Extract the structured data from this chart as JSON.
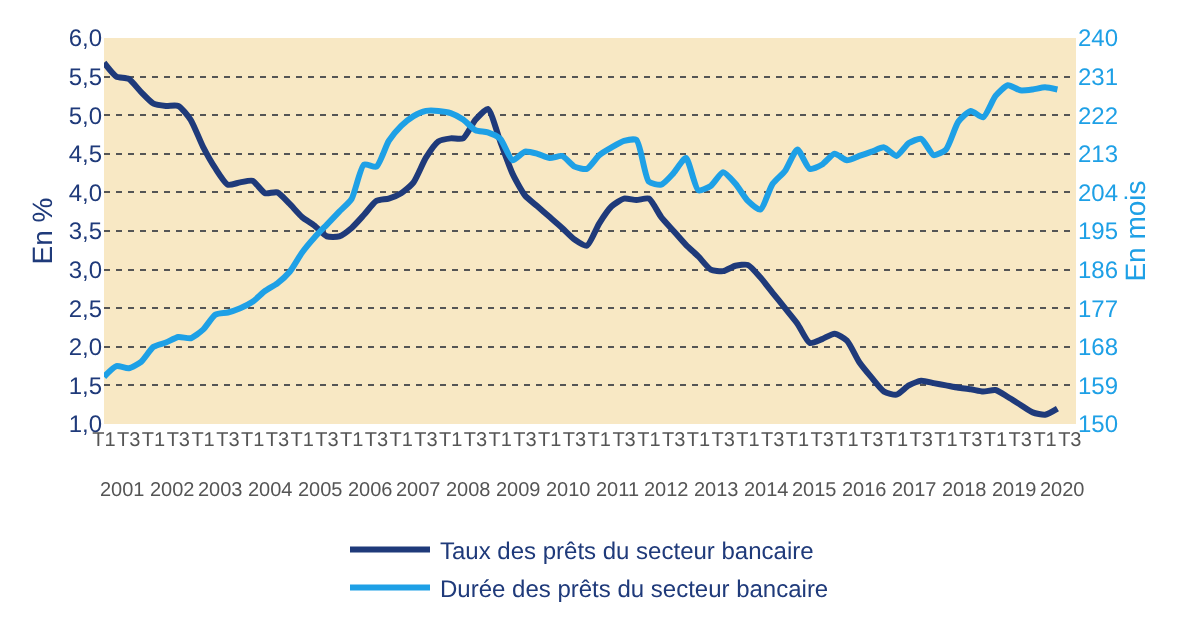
{
  "chart_data": {
    "type": "line",
    "categories": [
      "T1",
      null,
      "T3",
      null,
      "T1",
      null,
      "T3",
      null,
      "T1",
      null,
      "T3",
      null,
      "T1",
      null,
      "T3",
      null,
      "T1",
      null,
      "T3",
      null,
      "T1",
      null,
      "T3",
      null,
      "T1",
      null,
      "T3",
      null,
      "T1",
      null,
      "T3",
      null,
      "T1",
      null,
      "T3",
      null,
      "T1",
      null,
      "T3",
      null,
      "T1",
      null,
      "T3",
      null,
      "T1",
      null,
      "T3",
      null,
      "T1",
      null,
      "T3",
      null,
      "T1",
      null,
      "T3",
      null,
      "T1",
      null,
      "T3",
      null,
      "T1",
      null,
      "T3",
      null,
      "T1",
      null,
      "T3",
      null,
      "T1",
      null,
      "T3",
      null,
      "T1",
      null,
      "T3",
      null,
      "T1",
      null,
      "T3"
    ],
    "annotations": [
      "2001",
      "2002",
      "2003",
      "2004",
      "2005",
      "2006",
      "2007",
      "2008",
      "2009",
      "2010",
      "2011",
      "2012",
      "2013",
      "2014",
      "2015",
      "2016",
      "2017",
      "2018",
      "2019",
      "2020"
    ],
    "ylabel": "En %",
    "y2label": "En mois",
    "series": [
      {
        "name": "Taux des prêts du secteur bancaire",
        "color": "#1f3a7a",
        "values": [
          5.68,
          5.5,
          5.47,
          5.3,
          5.15,
          5.12,
          5.12,
          4.94,
          4.59,
          4.31,
          4.1,
          4.13,
          4.15,
          3.99,
          4.0,
          3.85,
          3.68,
          3.57,
          3.43,
          3.43,
          3.54,
          3.71,
          3.89,
          3.92,
          3.99,
          4.13,
          4.45,
          4.66,
          4.7,
          4.7,
          4.94,
          5.08,
          4.66,
          4.24,
          3.96,
          3.82,
          3.68,
          3.54,
          3.39,
          3.31,
          3.6,
          3.82,
          3.92,
          3.9,
          3.92,
          3.68,
          3.5,
          3.32,
          3.17,
          3.0,
          2.98,
          3.05,
          3.06,
          2.9,
          2.7,
          2.5,
          2.3,
          2.05,
          2.1,
          2.17,
          2.08,
          1.8,
          1.6,
          1.42,
          1.38,
          1.5,
          1.56,
          1.53,
          1.5,
          1.47,
          1.45,
          1.42,
          1.44,
          1.35,
          1.25,
          1.15,
          1.12,
          1.2,
          null
        ]
      },
      {
        "name": "Durée des prêts du secteur bancaire",
        "color": "#1ea0e6",
        "axis": "y2",
        "values": [
          161,
          163.5,
          163,
          164.5,
          168,
          169,
          170.3,
          170,
          172,
          175.5,
          176,
          177,
          178.5,
          181,
          182.8,
          185.5,
          190,
          193.5,
          196.5,
          199.5,
          202.5,
          210.5,
          210,
          216,
          219.5,
          221.8,
          223,
          223,
          222.5,
          221,
          218.5,
          218,
          216.5,
          211.5,
          213.5,
          213,
          212,
          212.5,
          210,
          209.5,
          212.7,
          214.5,
          216,
          216.2,
          206.5,
          205.8,
          208.5,
          212,
          204.5,
          205.5,
          208.7,
          206,
          202,
          200,
          206,
          209,
          214,
          209.5,
          210.5,
          213,
          211.5,
          212.5,
          213.5,
          214.5,
          212.5,
          215.5,
          216.5,
          212.7,
          214,
          220.5,
          223,
          221.5,
          226.5,
          229,
          227.8,
          228,
          228.5,
          228,
          null
        ]
      }
    ],
    "ylim": [
      1.0,
      6.0
    ],
    "yticks": [
      {
        "value": 1.0,
        "label": "1,0"
      },
      {
        "value": 1.5,
        "label": "1,5"
      },
      {
        "value": 2.0,
        "label": "2,0"
      },
      {
        "value": 2.5,
        "label": "2,5"
      },
      {
        "value": 3.0,
        "label": "3,0"
      },
      {
        "value": 3.5,
        "label": "3,5"
      },
      {
        "value": 4.0,
        "label": "4,0"
      },
      {
        "value": 4.5,
        "label": "4,5"
      },
      {
        "value": 5.0,
        "label": "5,0"
      },
      {
        "value": 5.5,
        "label": "5,5"
      },
      {
        "value": 6.0,
        "label": "6,0"
      }
    ],
    "y2lim": [
      150,
      240
    ],
    "y2ticks": [
      150,
      159,
      168,
      177,
      186,
      195,
      204,
      213,
      222,
      231,
      240
    ],
    "grid": "y",
    "legend": "bottom",
    "marker": "none",
    "line_style": "solid"
  }
}
